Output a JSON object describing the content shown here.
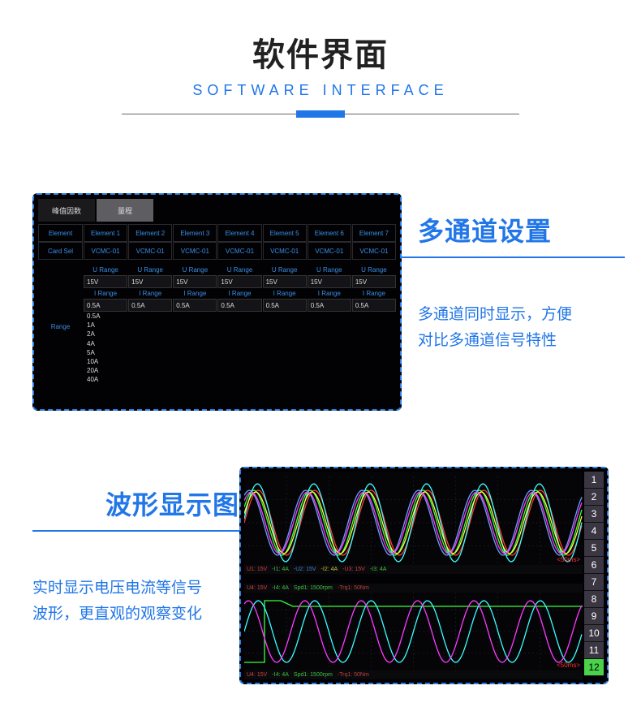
{
  "header": {
    "title_cn": "软件界面",
    "title_en": "SOFTWARE INTERFACE"
  },
  "section1": {
    "title": "多通道设置",
    "desc_line1": "多通道同时显示，方便",
    "desc_line2": "对比多通道信号特性",
    "panel": {
      "tab1": "峰值因数",
      "tab2": "量程",
      "row_element_label": "Element",
      "elements": [
        "Element 1",
        "Element 2",
        "Element 3",
        "Element 4",
        "Element 5",
        "Element 6",
        "Element 7"
      ],
      "row_card_label": "Card Sel",
      "cards": [
        "VCMC-01",
        "VCMC-01",
        "VCMC-01",
        "VCMC-01",
        "VCMC-01",
        "VCMC-01",
        "VCMC-01"
      ],
      "u_range_label": "U Range",
      "u_range_values": [
        "15V",
        "15V",
        "15V",
        "15V",
        "15V",
        "15V",
        "15V"
      ],
      "i_range_label": "I Range",
      "i_range_values": [
        "0.5A",
        "0.5A",
        "0.5A",
        "0.5A",
        "0.5A",
        "0.5A",
        "0.5A"
      ],
      "range_row_label": "Range",
      "i_range_options": [
        "0.5A",
        "1A",
        "2A",
        "4A",
        "5A",
        "10A",
        "20A",
        "40A"
      ]
    }
  },
  "section2": {
    "title": "波形显示图",
    "desc_line1": "实时显示电压电流等信号",
    "desc_line2": "波形，更直观的观察变化",
    "scope": {
      "channel_numbers": [
        "1",
        "2",
        "3",
        "4",
        "5",
        "6",
        "7",
        "8",
        "9",
        "10",
        "11",
        "12"
      ],
      "active_channel_index": 11,
      "timebase": "<50ms>",
      "timebase_color": "#ff3030",
      "top_status": {
        "u1": "U1: 15V",
        "i1": "-I1: 4A",
        "u2": "-U2: 15V",
        "i2": "-I2: 4A",
        "u3": "-U3: 15V",
        "i3": "-I3: 4A"
      },
      "bot_status": {
        "u4": "U4: 15V",
        "i4": "-I4: 4A",
        "spd": "Spd1: 1500rpm",
        "trq": "-Trq1: 50Nm"
      },
      "waves_top": [
        {
          "color": "#ff3a3a",
          "amp": 40,
          "phase": 0
        },
        {
          "color": "#3aff3a",
          "amp": 40,
          "phase": 0.5
        },
        {
          "color": "#6aa0ff",
          "amp": 40,
          "phase": 1.0
        },
        {
          "color": "#3affff",
          "amp": 48,
          "phase": 0.1
        },
        {
          "color": "#ffff40",
          "amp": 38,
          "phase": 0.3
        },
        {
          "color": "#ff3aff",
          "amp": 38,
          "phase": 0.8
        }
      ],
      "waves_bot": [
        {
          "color": "#3aff3a",
          "type": "step"
        },
        {
          "color": "#3affff",
          "amp": 38,
          "phase": 0
        },
        {
          "color": "#ff3aff",
          "amp": 38,
          "phase": 1.1
        }
      ],
      "grid_color": "#2a2a30"
    }
  },
  "colors": {
    "accent": "#2176e8",
    "dash_border": "#2a80eb",
    "panel_bg": "#020204"
  }
}
